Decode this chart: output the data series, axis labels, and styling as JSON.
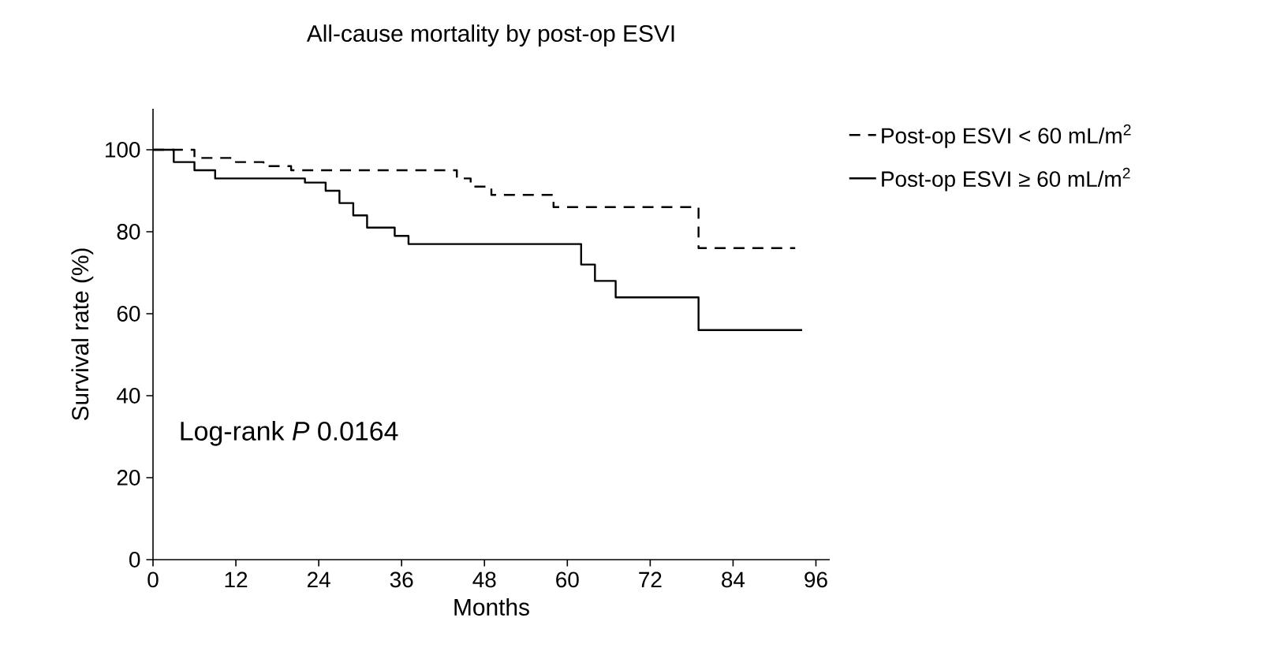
{
  "chart_data": {
    "type": "step",
    "title": "All-cause mortality by post-op ESVI",
    "xlabel": "Months",
    "ylabel": "Survival rate (%)",
    "xlim": [
      0,
      98
    ],
    "xticks": [
      0,
      12,
      24,
      36,
      48,
      60,
      72,
      84,
      96
    ],
    "ylim": [
      0,
      110
    ],
    "yticks": [
      0,
      20,
      40,
      60,
      80,
      100
    ],
    "legend": "top right",
    "grid": false,
    "annotations": [
      "Log-rank *P* 0.0164"
    ],
    "series": [
      {
        "name": "Post-op ESVI < 60 mL/m$^{2}$",
        "color": "#000000",
        "line_style": "dashed",
        "x": [
          0,
          6,
          12,
          16,
          20,
          23,
          44,
          46,
          49,
          58,
          79,
          93
        ],
        "values": [
          100,
          98,
          97,
          96,
          95,
          95,
          93,
          91,
          89,
          86,
          76,
          76
        ]
      },
      {
        "name": "Post-op ESVI ≥ 60 mL/m$^{2}$",
        "color": "#000000",
        "line_style": "solid",
        "x": [
          0,
          3,
          6,
          9,
          22,
          25,
          27,
          29,
          31,
          35,
          37,
          62,
          64,
          67,
          79,
          94
        ],
        "values": [
          100,
          97,
          95,
          93,
          92,
          90,
          87,
          84,
          81,
          79,
          77,
          72,
          68,
          64,
          56,
          56
        ]
      }
    ]
  }
}
